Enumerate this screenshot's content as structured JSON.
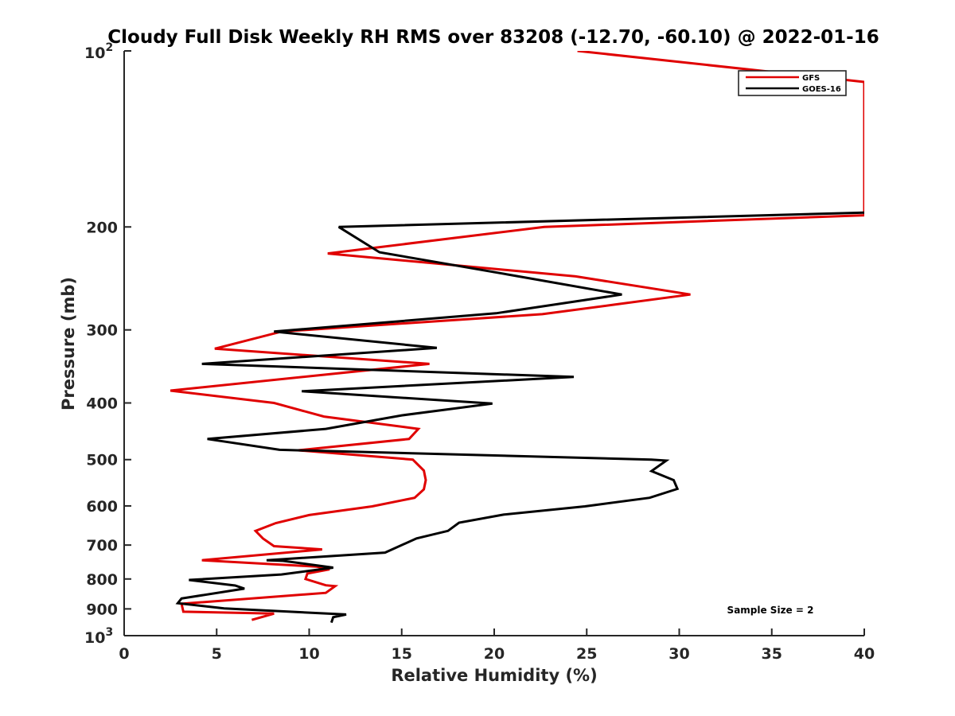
{
  "chart_data": {
    "type": "line",
    "title": "Cloudy Full Disk Weekly RH RMS over 83208 (-12.70, -60.10) @ 2022-01-16",
    "xlabel": "Relative Humidity (%)",
    "ylabel": "Pressure (mb)",
    "xlim": [
      0,
      40
    ],
    "ylim": [
      100,
      1000
    ],
    "yscale": "log",
    "y_reversed": true,
    "x_ticks": [
      "0",
      "5",
      "10",
      "15",
      "20",
      "25",
      "30",
      "35",
      "40"
    ],
    "y_ticks": [
      {
        "value": 100,
        "label": "10",
        "exp": "2"
      },
      {
        "value": 200,
        "label": "200"
      },
      {
        "value": 300,
        "label": "300"
      },
      {
        "value": 400,
        "label": "400"
      },
      {
        "value": 500,
        "label": "500"
      },
      {
        "value": 600,
        "label": "600"
      },
      {
        "value": 700,
        "label": "700"
      },
      {
        "value": 800,
        "label": "800"
      },
      {
        "value": 900,
        "label": "900"
      },
      {
        "value": 1000,
        "label": "10",
        "exp": "3"
      }
    ],
    "legend_position": "top-right",
    "annotation": "Sample Size = 2",
    "series": [
      {
        "name": "GFS",
        "color": "#e00000",
        "points": [
          [
            24.5,
            100
          ],
          [
            40,
            113
          ],
          [
            40,
            191
          ],
          [
            22.7,
            200
          ],
          [
            11.0,
            222
          ],
          [
            24.4,
            243
          ],
          [
            30.6,
            261
          ],
          [
            22.6,
            282
          ],
          [
            8.5,
            302
          ],
          [
            4.9,
            323
          ],
          [
            16.5,
            343
          ],
          [
            2.5,
            381
          ],
          [
            8.1,
            400
          ],
          [
            10.8,
            422
          ],
          [
            15.9,
            443
          ],
          [
            15.4,
            461
          ],
          [
            9.4,
            482
          ],
          [
            15.6,
            500
          ],
          [
            16.2,
            522
          ],
          [
            16.3,
            542
          ],
          [
            16.2,
            562
          ],
          [
            15.7,
            581
          ],
          [
            13.4,
            601
          ],
          [
            10.0,
            622
          ],
          [
            8.2,
            642
          ],
          [
            7.1,
            662
          ],
          [
            7.5,
            682
          ],
          [
            8.1,
            703
          ],
          [
            10.7,
            712
          ],
          [
            4.2,
            743
          ],
          [
            10.4,
            762
          ],
          [
            11.1,
            770
          ],
          [
            9.9,
            783
          ],
          [
            9.8,
            800
          ],
          [
            10.9,
            820
          ],
          [
            11.4,
            823
          ],
          [
            10.9,
            845
          ],
          [
            3.1,
            882
          ],
          [
            3.2,
            910
          ],
          [
            8.1,
            917
          ],
          [
            6.9,
            940
          ]
        ]
      },
      {
        "name": "GOES-16",
        "color": "#000000",
        "points": [
          [
            40,
            189
          ],
          [
            11.6,
            200
          ],
          [
            13.8,
            221
          ],
          [
            21.0,
            242
          ],
          [
            26.9,
            261
          ],
          [
            20.1,
            281
          ],
          [
            8.1,
            302
          ],
          [
            16.9,
            322
          ],
          [
            4.2,
            343
          ],
          [
            24.3,
            361
          ],
          [
            9.6,
            382
          ],
          [
            19.9,
            401
          ],
          [
            15.0,
            420
          ],
          [
            10.9,
            443
          ],
          [
            4.5,
            461
          ],
          [
            8.4,
            481
          ],
          [
            28.5,
            500
          ],
          [
            29.3,
            502
          ],
          [
            28.5,
            523
          ],
          [
            29.7,
            542
          ],
          [
            29.9,
            561
          ],
          [
            28.4,
            581
          ],
          [
            24.9,
            601
          ],
          [
            20.5,
            621
          ],
          [
            18.1,
            641
          ],
          [
            17.5,
            662
          ],
          [
            15.8,
            682
          ],
          [
            14.1,
            721
          ],
          [
            7.7,
            743
          ],
          [
            8.6,
            745
          ],
          [
            11.3,
            765
          ],
          [
            8.5,
            786
          ],
          [
            3.5,
            803
          ],
          [
            6.0,
            821
          ],
          [
            6.5,
            831
          ],
          [
            3.1,
            864
          ],
          [
            2.9,
            880
          ],
          [
            5.4,
            898
          ],
          [
            12.0,
            920
          ],
          [
            11.3,
            930
          ],
          [
            11.2,
            950
          ]
        ]
      }
    ]
  }
}
